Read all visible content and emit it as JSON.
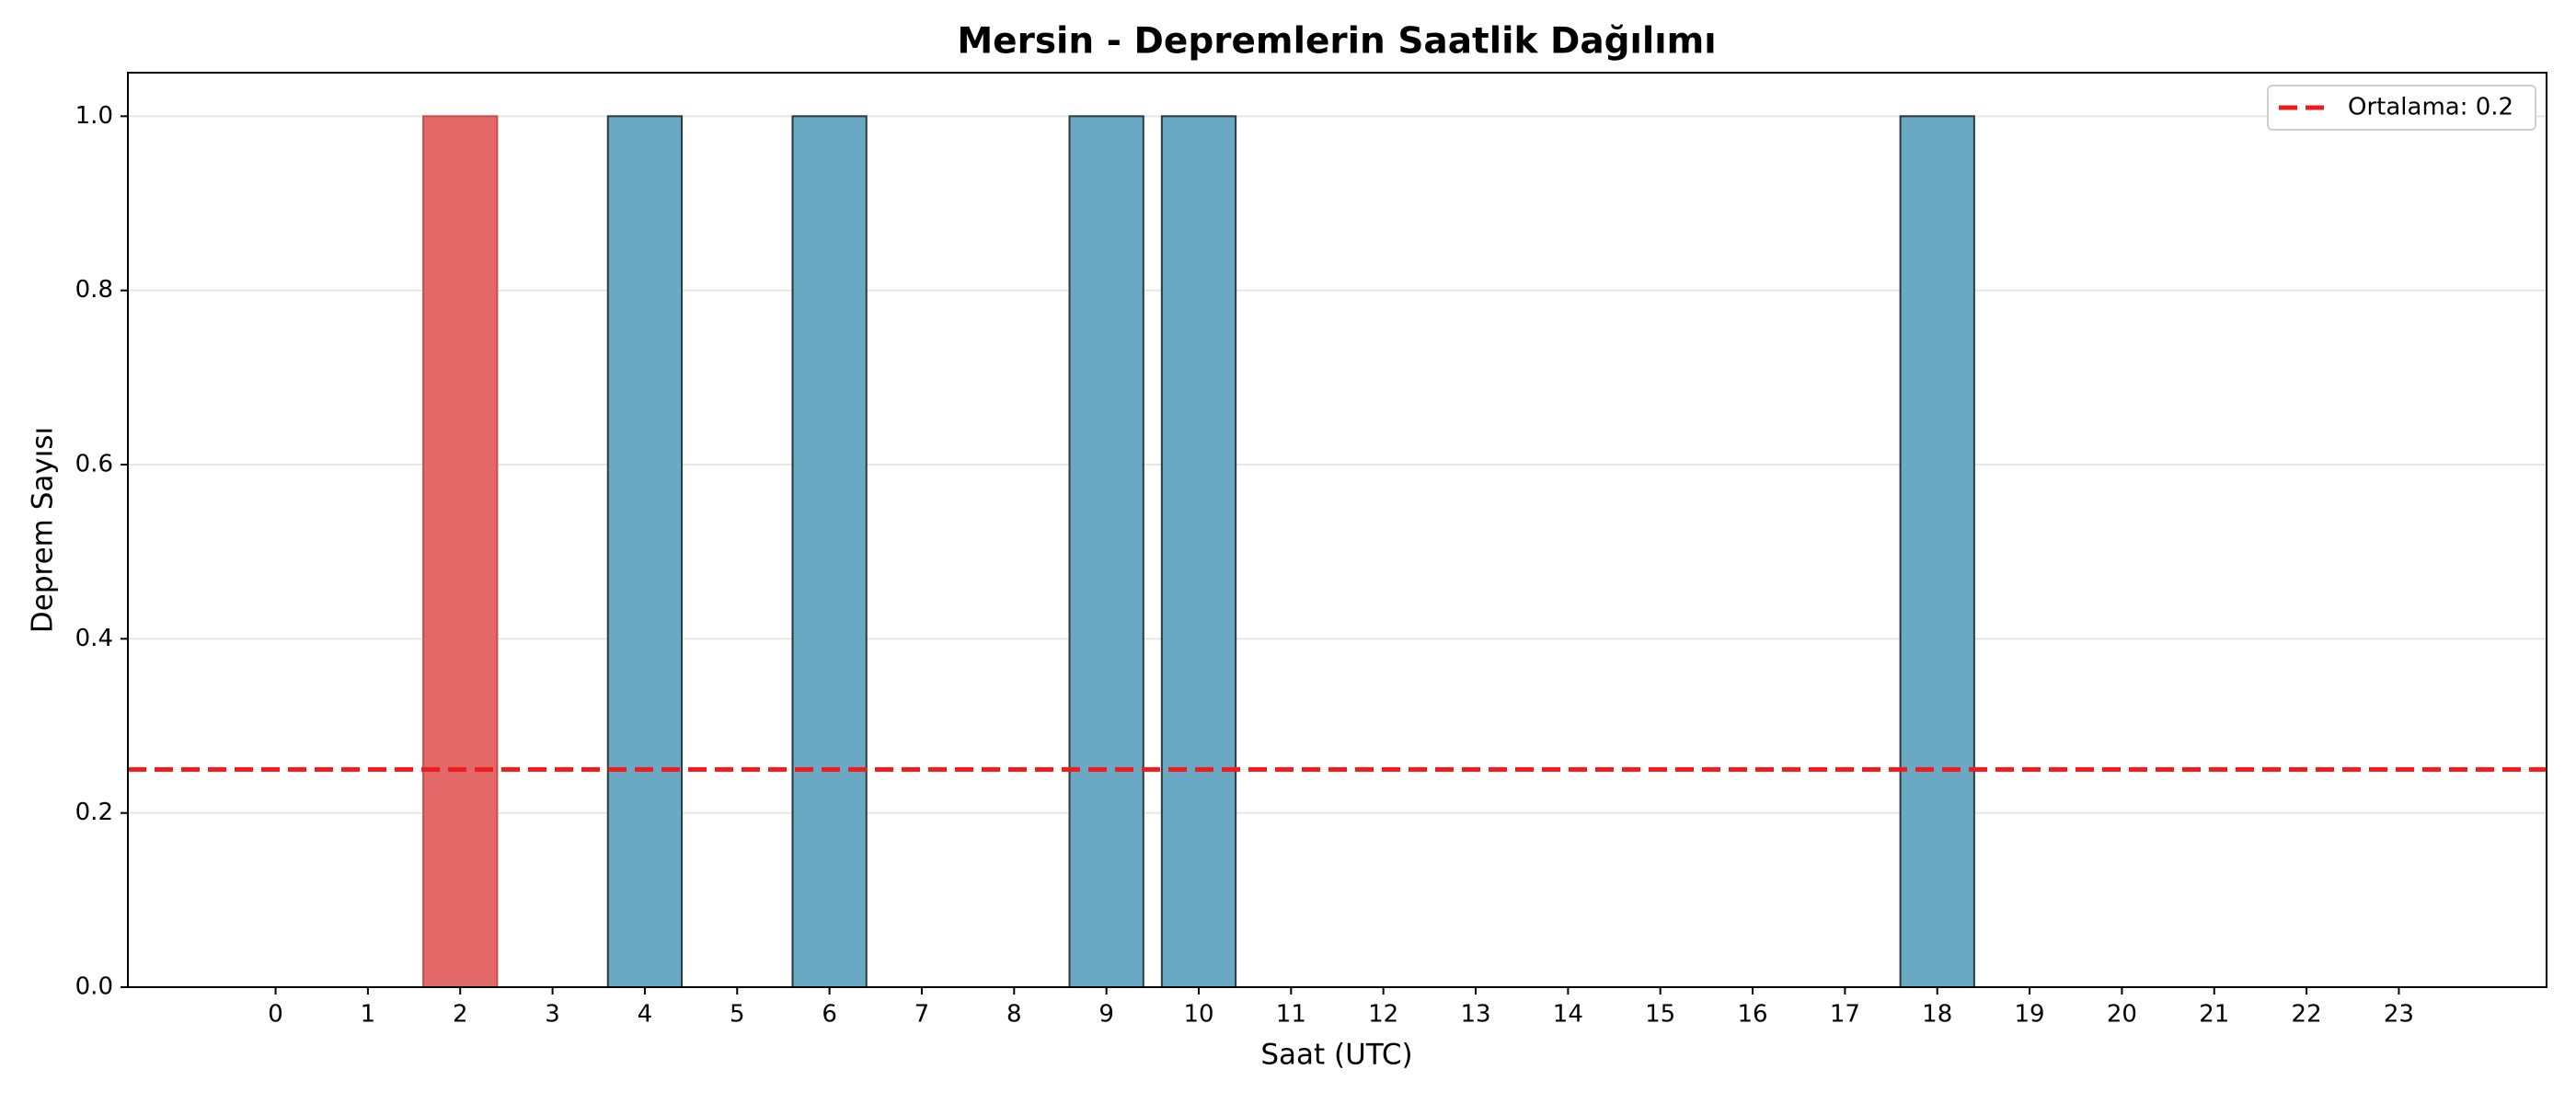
{
  "chart_data": {
    "type": "bar",
    "title": "Mersin - Depremlerin Saatlik Dağılımı",
    "x_label": "Saat (UTC)",
    "y_label": "Deprem Sayısı",
    "categories": [
      "0",
      "1",
      "2",
      "3",
      "4",
      "5",
      "6",
      "7",
      "8",
      "9",
      "10",
      "11",
      "12",
      "13",
      "14",
      "15",
      "16",
      "17",
      "18",
      "19",
      "20",
      "21",
      "22",
      "23"
    ],
    "values": [
      0,
      0,
      1,
      0,
      1,
      0,
      1,
      0,
      0,
      1,
      1,
      0,
      0,
      0,
      0,
      0,
      0,
      0,
      1,
      0,
      0,
      0,
      0,
      0
    ],
    "colors": [
      "#6aa9c4",
      "#6aa9c4",
      "#e36868",
      "#6aa9c4",
      "#6aa9c4",
      "#6aa9c4",
      "#6aa9c4",
      "#6aa9c4",
      "#6aa9c4",
      "#6aa9c4",
      "#6aa9c4",
      "#6aa9c4",
      "#6aa9c4",
      "#6aa9c4",
      "#6aa9c4",
      "#6aa9c4",
      "#6aa9c4",
      "#6aa9c4",
      "#6aa9c4",
      "#6aa9c4",
      "#6aa9c4",
      "#6aa9c4",
      "#6aa9c4",
      "#6aa9c4"
    ],
    "mean_line": {
      "value": 0.25,
      "label": "Ortalama: 0.2",
      "color": "#ee1c1c"
    },
    "ylim": [
      0,
      1.05
    ],
    "yticks": [
      {
        "value": 0,
        "label": "0.0"
      },
      0.2,
      0.4,
      0.6,
      0.8,
      {
        "value": 1,
        "label": "1.0"
      }
    ],
    "grid": true,
    "legend": "upper right"
  }
}
